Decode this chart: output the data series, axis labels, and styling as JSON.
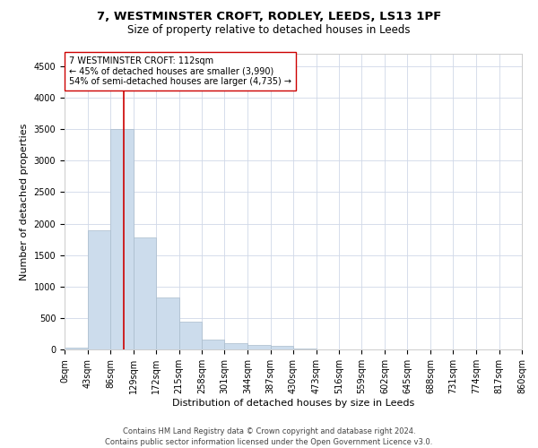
{
  "title": "7, WESTMINSTER CROFT, RODLEY, LEEDS, LS13 1PF",
  "subtitle": "Size of property relative to detached houses in Leeds",
  "xlabel": "Distribution of detached houses by size in Leeds",
  "ylabel": "Number of detached properties",
  "bar_color": "#ccdcec",
  "bar_edge_color": "#aabccc",
  "grid_color": "#d0d8e8",
  "background_color": "#ffffff",
  "property_size": 112,
  "property_label": "7 WESTMINSTER CROFT: 112sqm",
  "annotation_line1": "← 45% of detached houses are smaller (3,990)",
  "annotation_line2": "54% of semi-detached houses are larger (4,735) →",
  "red_line_color": "#cc0000",
  "annotation_box_color": "#ffffff",
  "annotation_box_edge": "#cc0000",
  "footer1": "Contains HM Land Registry data © Crown copyright and database right 2024.",
  "footer2": "Contains public sector information licensed under the Open Government Licence v3.0.",
  "bin_edges": [
    0,
    43,
    86,
    129,
    172,
    215,
    258,
    301,
    344,
    387,
    430,
    473,
    516,
    559,
    602,
    645,
    688,
    731,
    774,
    817,
    860
  ],
  "bar_heights": [
    30,
    1900,
    3500,
    1780,
    820,
    440,
    155,
    100,
    75,
    60,
    10,
    5,
    3,
    2,
    2,
    1,
    1,
    1,
    0,
    0
  ],
  "ylim": [
    0,
    4700
  ],
  "yticks": [
    0,
    500,
    1000,
    1500,
    2000,
    2500,
    3000,
    3500,
    4000,
    4500
  ],
  "title_fontsize": 9.5,
  "subtitle_fontsize": 8.5,
  "annotation_fontsize": 7,
  "axis_label_fontsize": 8,
  "tick_fontsize": 7,
  "footer_fontsize": 6
}
